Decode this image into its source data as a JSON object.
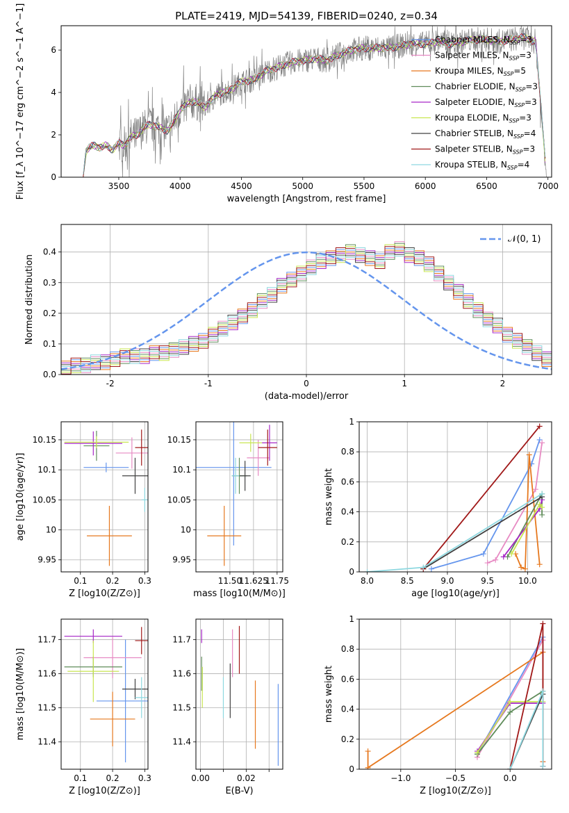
{
  "chart_data": [
    {
      "id": "spectrum",
      "type": "line",
      "title": "PLATE=2419, MJD=54139, FIBERID=0240, z=0.34",
      "xlabel": "wavelength [Angstrom, rest frame]",
      "ylabel": "Flux [f_λ 10^−17 erg cm^−2 s^−1 A^−1]",
      "xlim": [
        3030,
        7030
      ],
      "ylim": [
        0,
        7.15
      ],
      "xticks": [
        3500,
        4000,
        4500,
        5000,
        5500,
        6000,
        6500,
        7000
      ],
      "yticks": [
        0,
        2,
        4,
        6
      ],
      "grid": false,
      "legend_position": "top-right",
      "observed": {
        "name": "data",
        "color": "#808080",
        "x": [
          3210,
          3230,
          3260,
          3300,
          3350,
          3400,
          3450,
          3500,
          3550,
          3600,
          3650,
          3700,
          3750,
          3800,
          3850,
          3900,
          3950,
          4000,
          4050,
          4100,
          4150,
          4200,
          4300,
          4400,
          4500,
          4600,
          4700,
          4800,
          4900,
          5000,
          5100,
          5200,
          5300,
          5400,
          5500,
          5600,
          5700,
          5800,
          5900,
          6000,
          6100,
          6200,
          6300,
          6400,
          6500,
          6600,
          6700,
          6800,
          6900,
          6990
        ],
        "y": [
          0.0,
          1.2,
          1.4,
          1.5,
          1.4,
          1.5,
          1.3,
          1.6,
          1.5,
          1.9,
          2.0,
          2.3,
          2.5,
          2.4,
          2.3,
          2.2,
          2.6,
          3.2,
          3.4,
          3.6,
          3.5,
          3.3,
          3.9,
          4.1,
          4.5,
          4.6,
          5.0,
          5.2,
          5.4,
          5.5,
          5.6,
          5.5,
          5.8,
          6.0,
          6.1,
          6.1,
          6.1,
          6.2,
          6.3,
          6.3,
          6.4,
          6.3,
          6.4,
          6.5,
          6.5,
          6.4,
          6.5,
          6.6,
          6.4,
          0.0
        ]
      },
      "series": [
        {
          "name": "Chabrier MILES",
          "nssp": "3",
          "color": "#6495ed"
        },
        {
          "name": "Salpeter MILES",
          "nssp": "3",
          "color": "#e78ac3"
        },
        {
          "name": "Kroupa MILES",
          "nssp": "5",
          "color": "#e6781e"
        },
        {
          "name": "Chabrier ELODIE",
          "nssp": "3",
          "color": "#5f8c5a"
        },
        {
          "name": "Salpeter ELODIE",
          "nssp": "3",
          "color": "#a626c6"
        },
        {
          "name": "Kroupa ELODIE",
          "nssp": "3",
          "color": "#c8e650"
        },
        {
          "name": "Chabrier STELIB",
          "nssp": "4",
          "color": "#404040"
        },
        {
          "name": "Salpeter STELIB",
          "nssp": "3",
          "color": "#a01818"
        },
        {
          "name": "Kroupa STELIB",
          "nssp": "4",
          "color": "#8ed8e0"
        }
      ]
    },
    {
      "id": "residuals",
      "type": "histogram",
      "xlabel": "(data-model)/error",
      "ylabel": "Normed distribution",
      "xlim": [
        -2.5,
        2.5
      ],
      "ylim": [
        0,
        0.49
      ],
      "xticks": [
        -2,
        -1,
        0,
        1,
        2
      ],
      "yticks": [
        0.0,
        0.1,
        0.2,
        0.3,
        0.4
      ],
      "grid": true,
      "legend_position": "top-right",
      "legend_label": "𝒩(0, 1)",
      "normal_curve": {
        "mean": 0,
        "sigma": 1,
        "color": "#6495ed"
      },
      "bin_width": 0.1,
      "bin_start": -2.5,
      "hist_values": [
        0.02,
        0.03,
        0.03,
        0.04,
        0.04,
        0.05,
        0.06,
        0.06,
        0.06,
        0.07,
        0.07,
        0.08,
        0.09,
        0.1,
        0.11,
        0.13,
        0.15,
        0.17,
        0.19,
        0.21,
        0.24,
        0.26,
        0.29,
        0.31,
        0.33,
        0.35,
        0.37,
        0.38,
        0.39,
        0.4,
        0.39,
        0.38,
        0.37,
        0.4,
        0.41,
        0.39,
        0.38,
        0.36,
        0.33,
        0.3,
        0.27,
        0.24,
        0.21,
        0.18,
        0.16,
        0.13,
        0.11,
        0.09,
        0.07,
        0.05
      ]
    },
    {
      "id": "age_vs_Z",
      "type": "scatter",
      "xlabel": "Z [log10(Z/Z⊙)]",
      "ylabel": "age  [log10(age/yr)]",
      "xlim": [
        0.04,
        0.31
      ],
      "ylim": [
        9.93,
        10.18
      ],
      "xticks": [
        0.1,
        0.2,
        0.3
      ],
      "xticklabels": [
        "0.1",
        "0.2",
        "0.3"
      ],
      "yticks": [
        9.95,
        10.0,
        10.05,
        10.1,
        10.15
      ],
      "grid": true,
      "points": [
        {
          "x": 0.18,
          "y": 10.104,
          "xerr": 0.07,
          "yerr": 0.008,
          "color": "#6495ed"
        },
        {
          "x": 0.26,
          "y": 10.128,
          "xerr": 0.05,
          "yerr": 0.026,
          "color": "#e78ac3"
        },
        {
          "x": 0.19,
          "y": 9.99,
          "xerr": 0.07,
          "yerr": 0.05,
          "color": "#e6781e"
        },
        {
          "x": 0.15,
          "y": 10.14,
          "xerr": 0.04,
          "yerr": 0.025,
          "color": "#5f8c5a"
        },
        {
          "x": 0.14,
          "y": 10.144,
          "xerr": 0.09,
          "yerr": 0.02,
          "color": "#a626c6"
        },
        {
          "x": 0.15,
          "y": 10.146,
          "xerr": 0.1,
          "yerr": 0.01,
          "color": "#c8e650"
        },
        {
          "x": 0.27,
          "y": 10.09,
          "xerr": 0.04,
          "yerr": 0.03,
          "color": "#404040"
        },
        {
          "x": 0.29,
          "y": 10.137,
          "xerr": 0.02,
          "yerr": 0.03,
          "color": "#a01818"
        },
        {
          "x": 0.3,
          "y": 10.05,
          "xerr": 0.01,
          "yerr": 0.02,
          "color": "#8ed8e0"
        }
      ]
    },
    {
      "id": "age_vs_mass",
      "type": "scatter",
      "xlabel": "mass [log10(M/M⊙)]",
      "ylabel": "",
      "xlim": [
        11.32,
        11.78
      ],
      "ylim": [
        9.93,
        10.18
      ],
      "xticks": [
        11.5,
        11.625,
        11.75
      ],
      "xticklabels": [
        "11.50",
        "11.625",
        "11.75"
      ],
      "yticks": [
        9.95,
        10.0,
        10.05,
        10.1,
        10.15
      ],
      "grid": true,
      "points": [
        {
          "x": 11.52,
          "y": 10.104,
          "xerr": 0.2,
          "yerr": 0.13,
          "color": "#6495ed"
        },
        {
          "x": 11.65,
          "y": 10.12,
          "xerr": 0.06,
          "yerr": 0.03,
          "color": "#e78ac3"
        },
        {
          "x": 11.47,
          "y": 9.99,
          "xerr": 0.09,
          "yerr": 0.05,
          "color": "#e6781e"
        },
        {
          "x": 11.55,
          "y": 10.09,
          "xerr": 0.04,
          "yerr": 0.03,
          "color": "#5f8c5a"
        },
        {
          "x": 11.71,
          "y": 10.145,
          "xerr": 0.04,
          "yerr": 0.03,
          "color": "#a626c6"
        },
        {
          "x": 11.61,
          "y": 10.145,
          "xerr": 0.06,
          "yerr": 0.015,
          "color": "#c8e650"
        },
        {
          "x": 11.58,
          "y": 10.09,
          "xerr": 0.03,
          "yerr": 0.025,
          "color": "#404040"
        },
        {
          "x": 11.7,
          "y": 10.137,
          "xerr": 0.05,
          "yerr": 0.03,
          "color": "#a01818"
        },
        {
          "x": 11.53,
          "y": 10.09,
          "xerr": 0.02,
          "yerr": 0.03,
          "color": "#8ed8e0"
        }
      ]
    },
    {
      "id": "mass_weight_vs_age",
      "type": "line",
      "xlabel": "age  [log10(age/yr)]",
      "ylabel": "mass weight",
      "xlim": [
        7.9,
        10.3
      ],
      "ylim": [
        0,
        1.0
      ],
      "xticks": [
        8.0,
        8.5,
        9.0,
        9.5,
        10.0
      ],
      "xticklabels": [
        "8.0",
        "8.5",
        "9.0",
        "9.5",
        "10.0"
      ],
      "yticks": [
        0.0,
        0.2,
        0.4,
        0.6,
        0.8,
        1.0
      ],
      "grid": true,
      "series": [
        {
          "name": "Chabrier MILES",
          "color": "#6495ed",
          "x": [
            8.8,
            9.45,
            10.05,
            10.15
          ],
          "y": [
            0.02,
            0.12,
            0.72,
            0.88
          ]
        },
        {
          "name": "Salpeter MILES",
          "color": "#e78ac3",
          "x": [
            9.5,
            9.6,
            10.1,
            10.18
          ],
          "y": [
            0.06,
            0.08,
            0.55,
            0.86
          ]
        },
        {
          "name": "Kroupa MILES",
          "color": "#e6781e",
          "x": [
            9.85,
            9.92,
            9.97,
            10.02,
            10.15
          ],
          "y": [
            0.12,
            0.03,
            0.02,
            0.78,
            0.05
          ]
        },
        {
          "name": "Chabrier ELODIE",
          "color": "#5f8c5a",
          "x": [
            9.75,
            10.18,
            10.18
          ],
          "y": [
            0.1,
            0.52,
            0.38
          ]
        },
        {
          "name": "Salpeter ELODIE",
          "color": "#a626c6",
          "x": [
            9.7,
            10.15,
            10.18
          ],
          "y": [
            0.1,
            0.42,
            0.48
          ]
        },
        {
          "name": "Kroupa ELODIE",
          "color": "#c8e650",
          "x": [
            9.8,
            10.15,
            10.18
          ],
          "y": [
            0.12,
            0.45,
            0.43
          ]
        },
        {
          "name": "Chabrier STELIB",
          "color": "#404040",
          "x": [
            8.7,
            10.18
          ],
          "y": [
            0.02,
            0.5
          ]
        },
        {
          "name": "Salpeter STELIB",
          "color": "#a01818",
          "x": [
            8.7,
            10.15
          ],
          "y": [
            0.02,
            0.97
          ]
        },
        {
          "name": "Kroupa STELIB",
          "color": "#8ed8e0",
          "x": [
            8.0,
            8.7,
            10.18
          ],
          "y": [
            0.0,
            0.03,
            0.52
          ]
        }
      ]
    },
    {
      "id": "mass_vs_Z",
      "type": "scatter",
      "xlabel": "Z [log10(Z/Z⊙)]",
      "ylabel": "mass [log10(M/M⊙)]",
      "xlim": [
        0.04,
        0.31
      ],
      "ylim": [
        11.32,
        11.76
      ],
      "xticks": [
        0.1,
        0.2,
        0.3
      ],
      "xticklabels": [
        "0.1",
        "0.2",
        "0.3"
      ],
      "yticks": [
        11.4,
        11.5,
        11.6,
        11.7
      ],
      "grid": true,
      "points": [
        {
          "x": 0.24,
          "y": 11.52,
          "xerr": 0.09,
          "yerr": 0.18,
          "color": "#6495ed"
        },
        {
          "x": 0.2,
          "y": 11.647,
          "xerr": 0.09,
          "yerr": 0.06,
          "color": "#e78ac3"
        },
        {
          "x": 0.2,
          "y": 11.467,
          "xerr": 0.07,
          "yerr": 0.08,
          "color": "#e6781e"
        },
        {
          "x": 0.14,
          "y": 11.62,
          "xerr": 0.09,
          "yerr": 0.03,
          "color": "#5f8c5a"
        },
        {
          "x": 0.14,
          "y": 11.71,
          "xerr": 0.09,
          "yerr": 0.02,
          "color": "#a626c6"
        },
        {
          "x": 0.14,
          "y": 11.607,
          "xerr": 0.08,
          "yerr": 0.09,
          "color": "#c8e650"
        },
        {
          "x": 0.27,
          "y": 11.555,
          "xerr": 0.04,
          "yerr": 0.03,
          "color": "#404040"
        },
        {
          "x": 0.29,
          "y": 11.697,
          "xerr": 0.02,
          "yerr": 0.04,
          "color": "#a01818"
        },
        {
          "x": 0.29,
          "y": 11.53,
          "xerr": 0.02,
          "yerr": 0.06,
          "color": "#8ed8e0"
        }
      ]
    },
    {
      "id": "mass_vs_ebv",
      "type": "scatter",
      "xlabel": "E(B-V)",
      "ylabel": "",
      "xlim": [
        -0.002,
        0.036
      ],
      "ylim": [
        11.32,
        11.76
      ],
      "xticks": [
        0.0,
        0.01,
        0.02,
        0.03
      ],
      "xticklabels": [
        "0.00",
        "",
        "0.02",
        ""
      ],
      "yticks": [
        11.4,
        11.5,
        11.6,
        11.7
      ],
      "grid": true,
      "points": [
        {
          "x": 0.034,
          "y": 11.45,
          "xerr": 0.0,
          "yerr": 0.12,
          "color": "#6495ed"
        },
        {
          "x": 0.014,
          "y": 11.66,
          "xerr": 0.0,
          "yerr": 0.07,
          "color": "#e78ac3"
        },
        {
          "x": 0.024,
          "y": 11.48,
          "xerr": 0.0,
          "yerr": 0.1,
          "color": "#e6781e"
        },
        {
          "x": 0.0005,
          "y": 11.6,
          "xerr": 0.0,
          "yerr": 0.05,
          "color": "#5f8c5a"
        },
        {
          "x": 0.0005,
          "y": 11.71,
          "xerr": 0.0,
          "yerr": 0.02,
          "color": "#a626c6"
        },
        {
          "x": 0.0008,
          "y": 11.56,
          "xerr": 0.0,
          "yerr": 0.06,
          "color": "#c8e650"
        },
        {
          "x": 0.013,
          "y": 11.55,
          "xerr": 0.0,
          "yerr": 0.08,
          "color": "#404040"
        },
        {
          "x": 0.017,
          "y": 11.67,
          "xerr": 0.0,
          "yerr": 0.07,
          "color": "#a01818"
        },
        {
          "x": 0.01,
          "y": 11.53,
          "xerr": 0.0,
          "yerr": 0.06,
          "color": "#8ed8e0"
        }
      ]
    },
    {
      "id": "mass_weight_vs_Z",
      "type": "line",
      "xlabel": "Z [log10(Z/Z⊙)]",
      "ylabel": "mass weight",
      "xlim": [
        -1.38,
        0.38
      ],
      "ylim": [
        0,
        1.0
      ],
      "xticks": [
        -1.0,
        -0.5,
        0.0
      ],
      "xticklabels": [
        "−1.0",
        "−0.5",
        "0.0"
      ],
      "yticks": [
        0.0,
        0.2,
        0.4,
        0.6,
        0.8,
        1.0
      ],
      "grid": true,
      "series": [
        {
          "name": "Chabrier MILES",
          "color": "#6495ed",
          "x": [
            -0.3,
            0.3,
            0.3
          ],
          "y": [
            0.1,
            0.88,
            0.02
          ]
        },
        {
          "name": "Salpeter MILES",
          "color": "#e78ac3",
          "x": [
            -0.3,
            0.3,
            0.3
          ],
          "y": [
            0.08,
            0.86,
            0.05
          ]
        },
        {
          "name": "Kroupa MILES",
          "color": "#e6781e",
          "x": [
            -1.3,
            -1.3,
            0.3,
            0.3
          ],
          "y": [
            0.12,
            0.01,
            0.78,
            0.05
          ]
        },
        {
          "name": "Chabrier ELODIE",
          "color": "#5f8c5a",
          "x": [
            -0.3,
            0.0,
            0.3
          ],
          "y": [
            0.1,
            0.38,
            0.52
          ]
        },
        {
          "name": "Salpeter ELODIE",
          "color": "#a626c6",
          "x": [
            -0.3,
            0.0,
            0.3
          ],
          "y": [
            0.12,
            0.44,
            0.44
          ]
        },
        {
          "name": "Kroupa ELODIE",
          "color": "#c8e650",
          "x": [
            -0.3,
            0.0,
            0.3
          ],
          "y": [
            0.11,
            0.45,
            0.45
          ]
        },
        {
          "name": "Chabrier STELIB",
          "color": "#404040",
          "x": [
            0.0,
            0.3
          ],
          "y": [
            0.0,
            0.5
          ]
        },
        {
          "name": "Salpeter STELIB",
          "color": "#a01818",
          "x": [
            0.0,
            0.3,
            0.3
          ],
          "y": [
            0.0,
            0.97,
            0.02
          ]
        },
        {
          "name": "Kroupa STELIB",
          "color": "#8ed8e0",
          "x": [
            0.0,
            0.3,
            0.3
          ],
          "y": [
            0.0,
            0.52,
            0.02
          ]
        }
      ]
    }
  ]
}
